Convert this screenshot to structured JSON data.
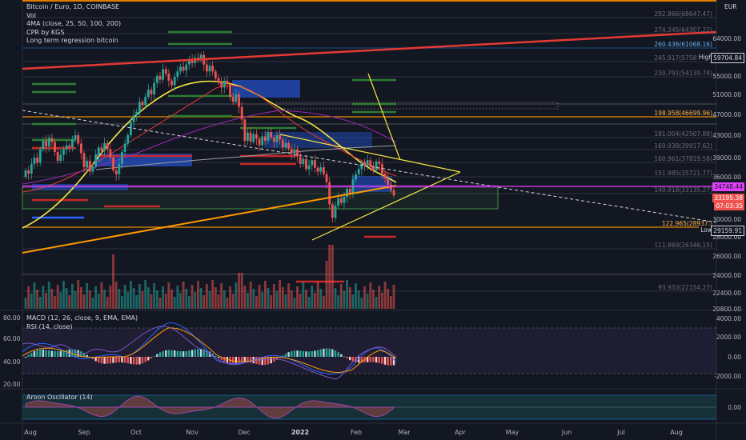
{
  "chart_data": {
    "type": "candlestick",
    "symbol": "Bitcoin / Euro, 1D, COINBASE",
    "currency": "EUR",
    "indicators": [
      "Vol",
      "4MA (close, 25, 50, 100, 200)",
      "CPR by KGS",
      "Long term regression bitcoin"
    ],
    "price_axis_ticks": [
      "64000.00",
      "59000.00",
      "55000.00",
      "51000.00",
      "47000.00",
      "43000.00",
      "39000.00",
      "36000.00",
      "33000.00",
      "30000.00",
      "28000.00",
      "26000.00",
      "24000.00",
      "22400.00",
      "20800.00"
    ],
    "x_ticks": [
      "Aug",
      "Sep",
      "Oct",
      "Nov",
      "Dec",
      "2022",
      "Feb",
      "Mar",
      "Apr",
      "May",
      "Jun",
      "Jul",
      "Aug"
    ],
    "price_markers": [
      {
        "label": "High",
        "value": "59704.84"
      },
      {
        "label": "",
        "value": "34748.44"
      },
      {
        "label": "",
        "value": "33195.38"
      },
      {
        "label": "",
        "value": "07:03:35"
      },
      {
        "label": "Low",
        "value": "29159.91"
      }
    ],
    "fib_levels": [
      {
        "label": "292.866(68647.47)"
      },
      {
        "label": "274.345(64307.22)"
      },
      {
        "label": "260.436(61068.16)"
      },
      {
        "label": "245.917(57583.08)"
      },
      {
        "label": "230.791(54139.74)"
      },
      {
        "label": "198.958(46699.96)"
      },
      {
        "label": "181.004(42507.88)"
      },
      {
        "label": "169.938(39917.62)"
      },
      {
        "label": "160.961(37819.58)"
      },
      {
        "label": "151.985(35721.77)"
      },
      {
        "label": "140.918(33135.27)"
      },
      {
        "label": "122.965(28937.)"
      },
      {
        "label": "111.869(26346.15)"
      },
      {
        "label": "93.933(22154.27)"
      }
    ],
    "macd": {
      "title": "MACD (12, 26, close, 9, EMA, EMA)",
      "ticks": [
        "4000.00",
        "2000.00",
        "0.00",
        "-2000.00"
      ]
    },
    "rsi": {
      "title": "RSI (14, close)",
      "ticks": [
        "80.00",
        "60.00",
        "40.00",
        "20.00"
      ]
    },
    "aroon": {
      "title": "Aroon Oscillator (14)",
      "ticks": [
        "0.00"
      ]
    },
    "colors": {
      "background": "#131722",
      "up": "#26a69a",
      "down": "#ef5350",
      "magenta": "#e040fb",
      "trend_yellow": "#f5e642",
      "regression_red": "#e53935",
      "orange": "#ff9800",
      "blue_zone": "#2962ff"
    },
    "candles": [
      [
        36000,
        37000
      ],
      [
        37000,
        36500
      ],
      [
        36500,
        38000
      ],
      [
        38000,
        39000
      ],
      [
        39000,
        38200
      ],
      [
        38200,
        40500
      ],
      [
        40500,
        42000
      ],
      [
        42000,
        41000
      ],
      [
        41000,
        42500
      ],
      [
        42500,
        41800
      ],
      [
        41800,
        40000
      ],
      [
        40000,
        38500
      ],
      [
        38500,
        39500
      ],
      [
        39500,
        40500
      ],
      [
        40500,
        41200
      ],
      [
        41200,
        40800
      ],
      [
        40800,
        42200
      ],
      [
        42200,
        43000
      ],
      [
        43000,
        41500
      ],
      [
        41500,
        39800
      ],
      [
        39800,
        37500
      ],
      [
        37500,
        38500
      ],
      [
        38500,
        36800
      ],
      [
        36800,
        37600
      ],
      [
        37600,
        39500
      ],
      [
        39500,
        40800
      ],
      [
        40800,
        40200
      ],
      [
        40200,
        41600
      ],
      [
        41600,
        40500
      ],
      [
        40500,
        39000
      ],
      [
        39000,
        37000
      ],
      [
        37000,
        36400
      ],
      [
        36400,
        38000
      ],
      [
        38000,
        40000
      ],
      [
        40000,
        41500
      ],
      [
        41500,
        43000
      ],
      [
        43000,
        45500
      ],
      [
        45500,
        46800
      ],
      [
        46800,
        47500
      ],
      [
        47500,
        49500
      ],
      [
        49500,
        48800
      ],
      [
        48800,
        50500
      ],
      [
        50500,
        52000
      ],
      [
        52000,
        51000
      ],
      [
        51000,
        53500
      ],
      [
        53500,
        55000
      ],
      [
        55000,
        54200
      ],
      [
        54200,
        56500
      ],
      [
        56500,
        55500
      ],
      [
        55500,
        54000
      ],
      [
        54000,
        53000
      ],
      [
        53000,
        54800
      ],
      [
        54800,
        56000
      ],
      [
        56000,
        57000
      ],
      [
        57000,
        56200
      ],
      [
        56200,
        57500
      ],
      [
        57500,
        58500
      ],
      [
        58500,
        57800
      ],
      [
        57800,
        59000
      ],
      [
        59000,
        58500
      ],
      [
        58500,
        59700
      ],
      [
        59700,
        57500
      ],
      [
        57500,
        56000
      ],
      [
        56000,
        57200
      ],
      [
        57200,
        56000
      ],
      [
        56000,
        54500
      ],
      [
        54500,
        53500
      ],
      [
        53500,
        52500
      ],
      [
        52500,
        54000
      ],
      [
        54000,
        53200
      ],
      [
        53200,
        50500
      ],
      [
        50500,
        49500
      ],
      [
        49500,
        51000
      ],
      [
        51000,
        48500
      ],
      [
        48500,
        46000
      ],
      [
        46000,
        42000
      ],
      [
        42000,
        43500
      ],
      [
        43500,
        41800
      ],
      [
        41800,
        43200
      ],
      [
        43200,
        42400
      ],
      [
        42400,
        41200
      ],
      [
        41200,
        42800
      ],
      [
        42800,
        42000
      ],
      [
        42000,
        43600
      ],
      [
        43600,
        42600
      ],
      [
        42600,
        41800
      ],
      [
        41800,
        43000
      ],
      [
        43000,
        42200
      ],
      [
        42200,
        40800
      ],
      [
        40800,
        41600
      ],
      [
        41600,
        40600
      ],
      [
        40600,
        39800
      ],
      [
        39800,
        40500
      ],
      [
        40500,
        39200
      ],
      [
        39200,
        38000
      ],
      [
        38000,
        38800
      ],
      [
        38800,
        37200
      ],
      [
        37200,
        37800
      ],
      [
        37800,
        38600
      ],
      [
        38600,
        37400
      ],
      [
        37400,
        36800
      ],
      [
        36800,
        37500
      ],
      [
        37500,
        36400
      ],
      [
        36400,
        35200
      ],
      [
        35200,
        32000
      ],
      [
        32000,
        30200
      ],
      [
        30200,
        31800
      ],
      [
        31800,
        32800
      ],
      [
        32800,
        32200
      ],
      [
        32200,
        33000
      ],
      [
        33000,
        34200
      ],
      [
        34200,
        33400
      ],
      [
        33400,
        35600
      ],
      [
        35600,
        36400
      ],
      [
        36400,
        37200
      ],
      [
        37200,
        38200
      ],
      [
        38200,
        37800
      ],
      [
        37800,
        38600
      ],
      [
        38600,
        37600
      ],
      [
        37600,
        37000
      ],
      [
        37000,
        38400
      ],
      [
        38400,
        38000
      ],
      [
        38000,
        36500
      ],
      [
        36500,
        35800
      ],
      [
        35800,
        34800
      ],
      [
        34800,
        34000
      ],
      [
        34000,
        33200
      ]
    ]
  }
}
